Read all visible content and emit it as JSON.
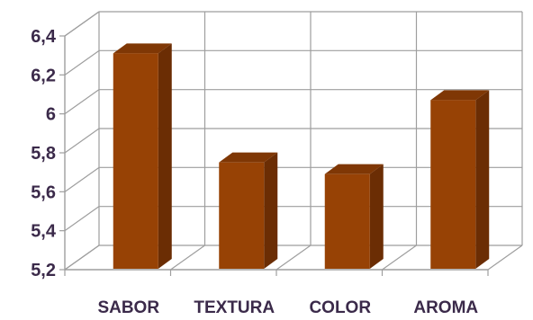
{
  "chart_data": {
    "type": "bar",
    "categories": [
      "SABOR",
      "TEXTURA",
      "COLOR",
      "AROMA"
    ],
    "values": [
      6.32,
      5.76,
      5.7,
      6.08
    ],
    "yticks": [
      "5,2",
      "5,4",
      "5,6",
      "5,8",
      "6",
      "6,2",
      "6,4"
    ],
    "ylim": [
      5.2,
      6.4
    ],
    "grid": true,
    "legend": "none",
    "colors": {
      "bar_front": "#974205",
      "bar_side": "#6b2d04",
      "bar_top": "#7f3705",
      "grid": "#9e9e9e",
      "text": "#3b2a4a"
    }
  }
}
